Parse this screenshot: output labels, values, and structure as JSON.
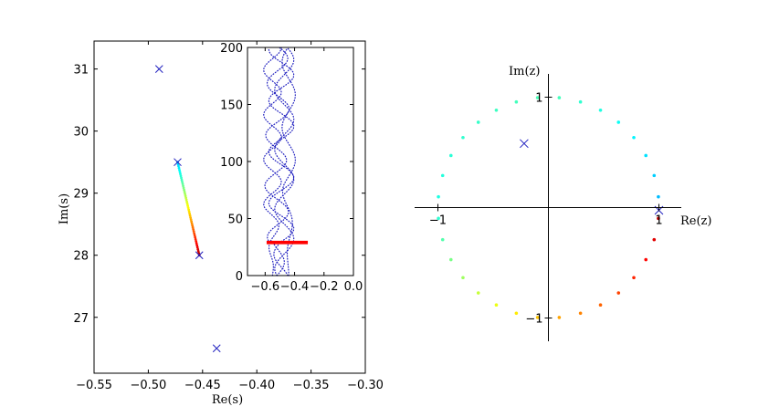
{
  "chart_data": [
    {
      "id": "left-main",
      "type": "scatter",
      "xlabel": "Re(s)",
      "ylabel": "Im(s)",
      "xlim": [
        -0.55,
        -0.3
      ],
      "ylim": [
        26.1,
        31.45
      ],
      "xticks": [
        -0.55,
        -0.5,
        -0.45,
        -0.4,
        -0.35,
        -0.3
      ],
      "xtick_labels": [
        "−0.55",
        "−0.50",
        "−0.45",
        "−0.40",
        "−0.35",
        "−0.30"
      ],
      "yticks": [
        27,
        28,
        29,
        30,
        31
      ],
      "ytick_labels": [
        "27",
        "28",
        "29",
        "30",
        "31"
      ],
      "grid": false,
      "cross_marker_color": "#1f1fbf",
      "crosses": [
        {
          "x": -0.49,
          "y": 31.0
        },
        {
          "x": -0.473,
          "y": 29.5
        },
        {
          "x": -0.453,
          "y": 28.0
        },
        {
          "x": -0.437,
          "y": 26.5
        }
      ],
      "trajectory": {
        "from": {
          "x": -0.473,
          "y": 29.5
        },
        "to": {
          "x": -0.453,
          "y": 28.0
        },
        "points": 48,
        "colormap": "jet",
        "color_from": 0.32,
        "color_to": 0.95
      }
    },
    {
      "id": "left-inset",
      "type": "line",
      "xlim": [
        -0.72,
        0.0
      ],
      "ylim": [
        0,
        200
      ],
      "xticks": [
        -0.6,
        -0.4,
        -0.2,
        0.0
      ],
      "xtick_labels": [
        "−0.6",
        "−0.4",
        "−0.2",
        "0.0"
      ],
      "yticks": [
        0,
        50,
        100,
        150,
        200
      ],
      "ytick_labels": [
        "0",
        "50",
        "100",
        "150",
        "200"
      ],
      "grid": false,
      "line_color": "#1f1fbf",
      "line_style": "dotted",
      "highlight": {
        "x": [
          -0.59,
          -0.31
        ],
        "y": [
          27.5,
          30.5
        ],
        "color": "#ff0000"
      }
    },
    {
      "id": "right-z-plane",
      "type": "scatter",
      "xlabel": "Re(z)",
      "ylabel": "Im(z)",
      "xlim": [
        -1.18,
        1.23
      ],
      "ylim": [
        -1.18,
        1.23
      ],
      "xtick_labels": [
        "−1",
        "1"
      ],
      "ytick_labels": [
        "1",
        "−1"
      ],
      "grid": false,
      "unit_circle_points": 32,
      "colormap": "jet",
      "color_at_top": 0.45,
      "color_at_left": 0.4,
      "color_at_bottom": 0.7,
      "color_at_right_above": 0.3,
      "color_at_right_below": 0.95,
      "cross_marker_color": "#1f1fbf",
      "crosses": [
        {
          "x": -0.22,
          "y": 0.58
        },
        {
          "x": 1.0,
          "y": -0.025
        }
      ]
    }
  ]
}
